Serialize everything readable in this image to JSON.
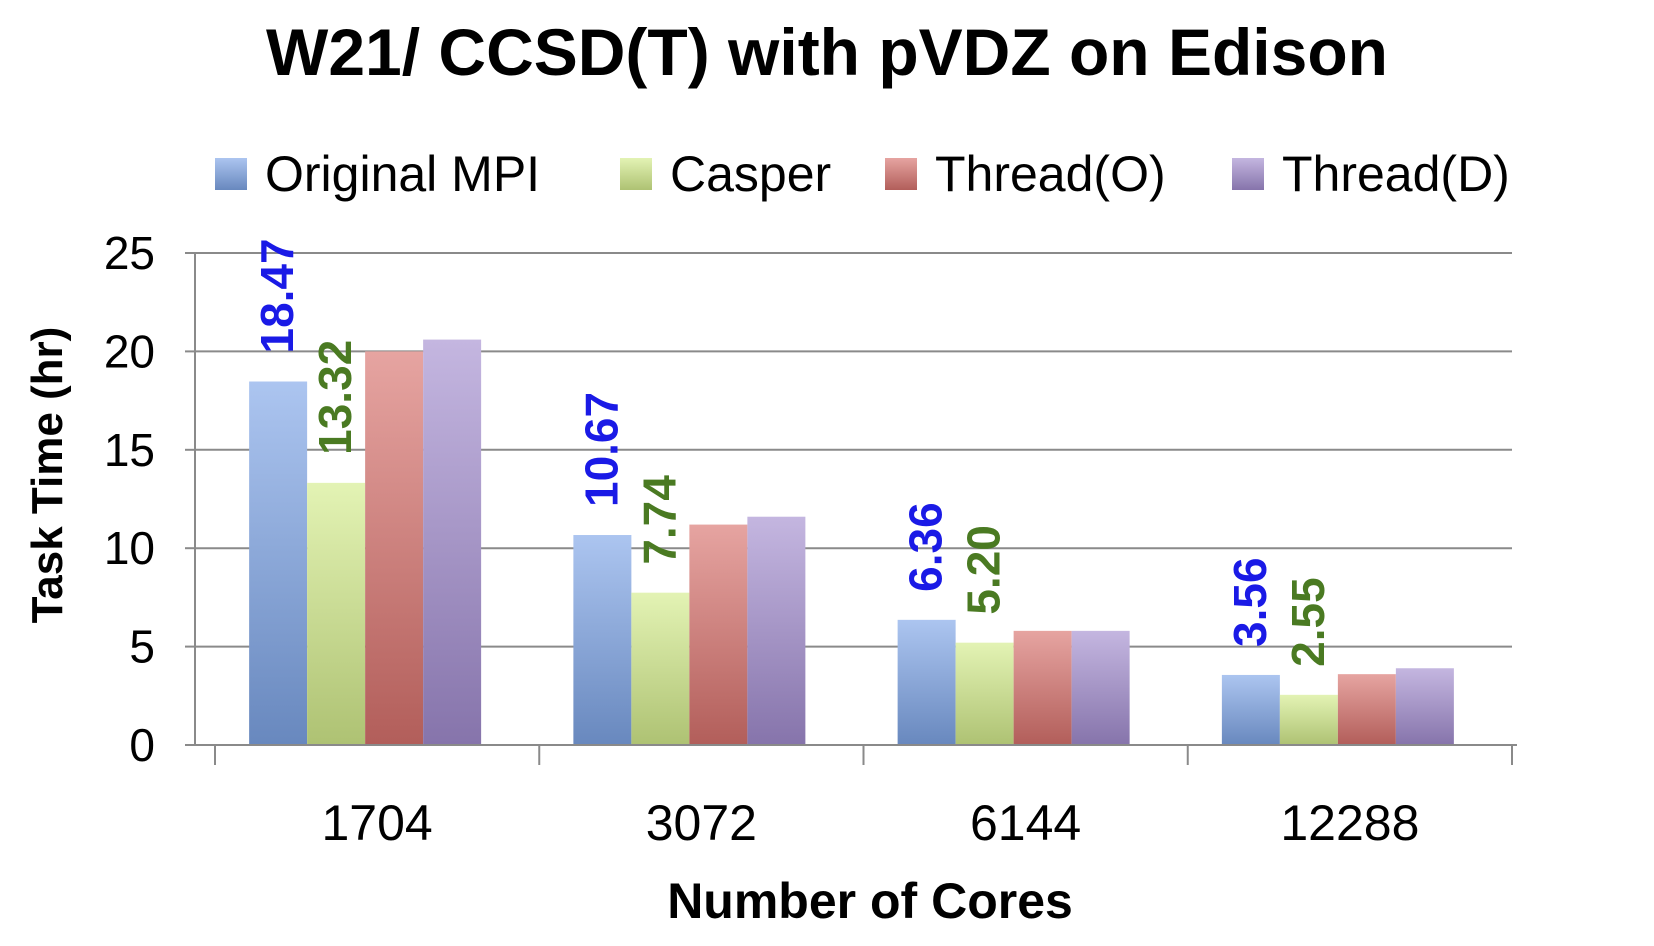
{
  "chart_data": {
    "type": "bar",
    "title": "W21/ CCSD(T) with pVDZ on Edison",
    "xlabel": "Number of Cores",
    "ylabel": "Task Time (hr)",
    "categories": [
      "1704",
      "3072",
      "6144",
      "12288"
    ],
    "ylim": [
      0,
      25
    ],
    "yticks": [
      "0",
      "5",
      "10",
      "15",
      "20",
      "25"
    ],
    "grid": true,
    "legend_position": "top",
    "series": [
      {
        "name": "Original MPI",
        "values": [
          18.47,
          10.67,
          6.36,
          3.56
        ],
        "labels": [
          "18.47",
          "10.67",
          "6.36",
          "3.56"
        ],
        "color": "#7fa6e8",
        "label_color": "#1a1ae6"
      },
      {
        "name": "Casper",
        "values": [
          13.32,
          7.74,
          5.2,
          2.55
        ],
        "labels": [
          "13.32",
          "7.74",
          "5.20",
          "2.55"
        ],
        "color": "#d4ec8c",
        "label_color": "#4a7a22"
      },
      {
        "name": "Thread(O)",
        "values": [
          20.0,
          11.2,
          5.8,
          3.6
        ],
        "labels": [
          "",
          "",
          "",
          ""
        ],
        "color": "#d9736e",
        "label_color": ""
      },
      {
        "name": "Thread(D)",
        "values": [
          20.6,
          11.6,
          5.8,
          3.9
        ],
        "labels": [
          "",
          "",
          "",
          ""
        ],
        "color": "#a48ed0",
        "label_color": ""
      }
    ]
  }
}
